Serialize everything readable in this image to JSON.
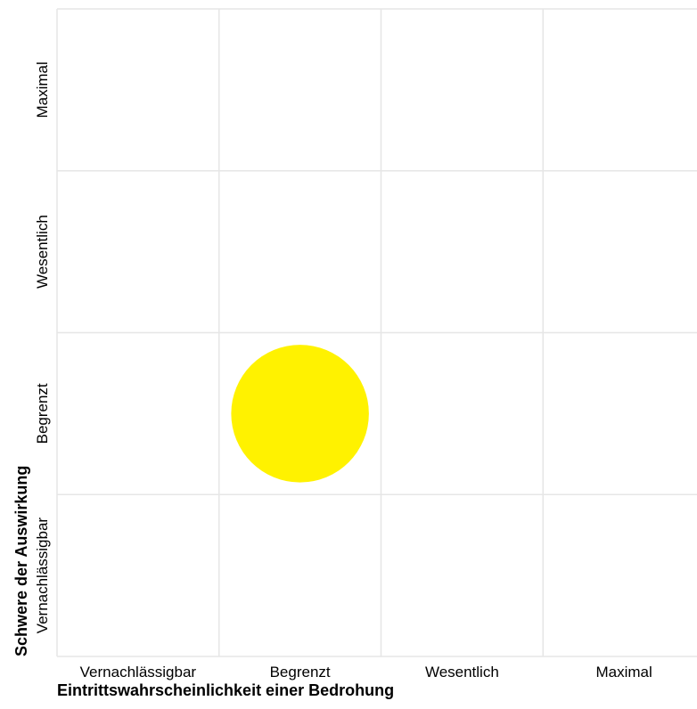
{
  "chart_data": {
    "type": "scatter",
    "title": "",
    "xlabel": "Eintrittswahrscheinlichkeit einer Bedrohung",
    "ylabel": "Schwere der Auswirkung",
    "x_categories": [
      "Vernachlässigbar",
      "Begrenzt",
      "Wesentlich",
      "Maximal"
    ],
    "y_categories": [
      "Vernachlässigbar",
      "Begrenzt",
      "Wesentlich",
      "Maximal"
    ],
    "grid": true,
    "legend": "none",
    "points": [
      {
        "x": "Begrenzt",
        "y": "Begrenzt",
        "color": "#fff200"
      }
    ]
  }
}
